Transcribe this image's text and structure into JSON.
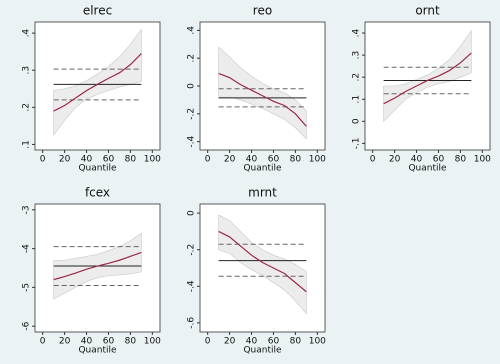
{
  "chart_data": [
    {
      "type": "line",
      "title": "elrec",
      "x_label": "Quantile",
      "x": [
        10,
        20,
        30,
        40,
        50,
        60,
        70,
        80,
        90
      ],
      "xlim": [
        -7,
        107
      ],
      "xticks": [
        0,
        20,
        40,
        60,
        80,
        100
      ],
      "ylim": [
        0.085,
        0.43
      ],
      "yticks": [
        {
          "value": 0.1,
          "label": ".1"
        },
        {
          "value": 0.2,
          "label": ".2"
        },
        {
          "value": 0.3,
          "label": ".3"
        },
        {
          "value": 0.4,
          "label": ".4"
        }
      ],
      "band": {
        "color": "#d9d9d9",
        "lower": [
          0.125,
          0.165,
          0.2,
          0.222,
          0.235,
          0.245,
          0.255,
          0.262,
          0.27
        ],
        "upper": [
          0.245,
          0.25,
          0.258,
          0.272,
          0.29,
          0.31,
          0.335,
          0.37,
          0.41
        ]
      },
      "series": [
        {
          "color": "#9b2a46",
          "values": [
            0.19,
            0.205,
            0.225,
            0.245,
            0.262,
            0.278,
            0.293,
            0.315,
            0.345
          ]
        }
      ],
      "hlines": [
        {
          "value": 0.262,
          "dashed": false,
          "color": "#222"
        },
        {
          "value": 0.303,
          "dashed": true,
          "color": "#666"
        },
        {
          "value": 0.22,
          "dashed": true,
          "color": "#666"
        }
      ]
    },
    {
      "type": "line",
      "title": "reo",
      "x_label": "Quantile",
      "x": [
        10,
        20,
        30,
        40,
        50,
        60,
        70,
        80,
        90
      ],
      "xlim": [
        -7,
        107
      ],
      "xticks": [
        0,
        20,
        40,
        60,
        80,
        100
      ],
      "ylim": [
        -0.46,
        0.46
      ],
      "yticks": [
        {
          "value": -0.4,
          "label": "-.4"
        },
        {
          "value": -0.2,
          "label": "-.2"
        },
        0,
        {
          "value": 0.2,
          "label": ".2"
        },
        {
          "value": 0.4,
          "label": ".4"
        }
      ],
      "band": {
        "color": "#d9d9d9",
        "lower": [
          -0.08,
          -0.08,
          -0.1,
          -0.13,
          -0.16,
          -0.2,
          -0.24,
          -0.3,
          -0.38
        ],
        "upper": [
          0.28,
          0.21,
          0.13,
          0.07,
          0.02,
          -0.02,
          -0.05,
          -0.1,
          -0.18
        ]
      },
      "series": [
        {
          "color": "#9b2a46",
          "values": [
            0.09,
            0.06,
            0.01,
            -0.03,
            -0.07,
            -0.11,
            -0.14,
            -0.2,
            -0.29
          ]
        }
      ],
      "hlines": [
        {
          "value": -0.085,
          "dashed": false,
          "color": "#222"
        },
        {
          "value": -0.02,
          "dashed": true,
          "color": "#666"
        },
        {
          "value": -0.15,
          "dashed": true,
          "color": "#666"
        }
      ]
    },
    {
      "type": "line",
      "title": "ornt",
      "x_label": "Quantile",
      "x": [
        10,
        20,
        30,
        40,
        50,
        60,
        70,
        80,
        90
      ],
      "xlim": [
        -7,
        107
      ],
      "xticks": [
        0,
        20,
        40,
        60,
        80,
        100
      ],
      "ylim": [
        -0.13,
        0.45
      ],
      "yticks": [
        {
          "value": -0.1,
          "label": "-.1"
        },
        0,
        {
          "value": 0.1,
          "label": ".1"
        },
        {
          "value": 0.2,
          "label": ".2"
        },
        {
          "value": 0.3,
          "label": ".3"
        },
        {
          "value": 0.4,
          "label": ".4"
        }
      ],
      "band": {
        "color": "#d9d9d9",
        "lower": [
          0.0,
          0.05,
          0.1,
          0.13,
          0.155,
          0.17,
          0.18,
          0.2,
          0.22
        ],
        "upper": [
          0.16,
          0.16,
          0.17,
          0.19,
          0.21,
          0.24,
          0.28,
          0.34,
          0.41
        ]
      },
      "series": [
        {
          "color": "#9b2a46",
          "values": [
            0.08,
            0.105,
            0.135,
            0.16,
            0.185,
            0.205,
            0.23,
            0.265,
            0.31
          ]
        }
      ],
      "hlines": [
        {
          "value": 0.185,
          "dashed": false,
          "color": "#222"
        },
        {
          "value": 0.245,
          "dashed": true,
          "color": "#666"
        },
        {
          "value": 0.125,
          "dashed": true,
          "color": "#666"
        }
      ]
    },
    {
      "type": "line",
      "title": "fcex",
      "x_label": "Quantile",
      "x": [
        10,
        20,
        30,
        40,
        50,
        60,
        70,
        80,
        90
      ],
      "xlim": [
        -7,
        107
      ],
      "xticks": [
        0,
        20,
        40,
        60,
        80,
        100
      ],
      "ylim": [
        -6.15,
        -2.85
      ],
      "yticks": [
        -6,
        -5,
        -4,
        -3
      ],
      "band": {
        "color": "#d9d9d9",
        "lower": [
          -5.3,
          -5.15,
          -5.0,
          -4.85,
          -4.75,
          -4.7,
          -4.68,
          -4.65,
          -4.6
        ],
        "upper": [
          -4.3,
          -4.3,
          -4.25,
          -4.2,
          -4.15,
          -4.05,
          -3.95,
          -3.8,
          -3.6
        ]
      },
      "series": [
        {
          "color": "#9b2a46",
          "values": [
            -4.8,
            -4.72,
            -4.63,
            -4.53,
            -4.45,
            -4.38,
            -4.3,
            -4.2,
            -4.1
          ]
        }
      ],
      "hlines": [
        {
          "value": -4.45,
          "dashed": false,
          "color": "#222"
        },
        {
          "value": -3.95,
          "dashed": true,
          "color": "#666"
        },
        {
          "value": -4.95,
          "dashed": true,
          "color": "#666"
        }
      ]
    },
    {
      "type": "line",
      "title": "mrnt",
      "x_label": "Quantile",
      "x": [
        10,
        20,
        30,
        40,
        50,
        60,
        70,
        80,
        90
      ],
      "xlim": [
        -7,
        107
      ],
      "xticks": [
        0,
        20,
        40,
        60,
        80,
        100
      ],
      "ylim": [
        -0.65,
        0.05
      ],
      "yticks": [
        {
          "value": -0.6,
          "label": "-.6"
        },
        {
          "value": -0.4,
          "label": "-.4"
        },
        {
          "value": -0.2,
          "label": "-.2"
        },
        0
      ],
      "band": {
        "color": "#d9d9d9",
        "lower": [
          -0.2,
          -0.22,
          -0.27,
          -0.31,
          -0.34,
          -0.38,
          -0.42,
          -0.48,
          -0.55
        ],
        "upper": [
          -0.01,
          -0.04,
          -0.1,
          -0.16,
          -0.2,
          -0.23,
          -0.25,
          -0.28,
          -0.32
        ]
      },
      "series": [
        {
          "color": "#9b2a46",
          "values": [
            -0.1,
            -0.13,
            -0.18,
            -0.23,
            -0.27,
            -0.3,
            -0.33,
            -0.38,
            -0.43
          ]
        }
      ],
      "hlines": [
        {
          "value": -0.26,
          "dashed": false,
          "color": "#222"
        },
        {
          "value": -0.17,
          "dashed": true,
          "color": "#666"
        },
        {
          "value": -0.345,
          "dashed": true,
          "color": "#666"
        }
      ]
    }
  ]
}
